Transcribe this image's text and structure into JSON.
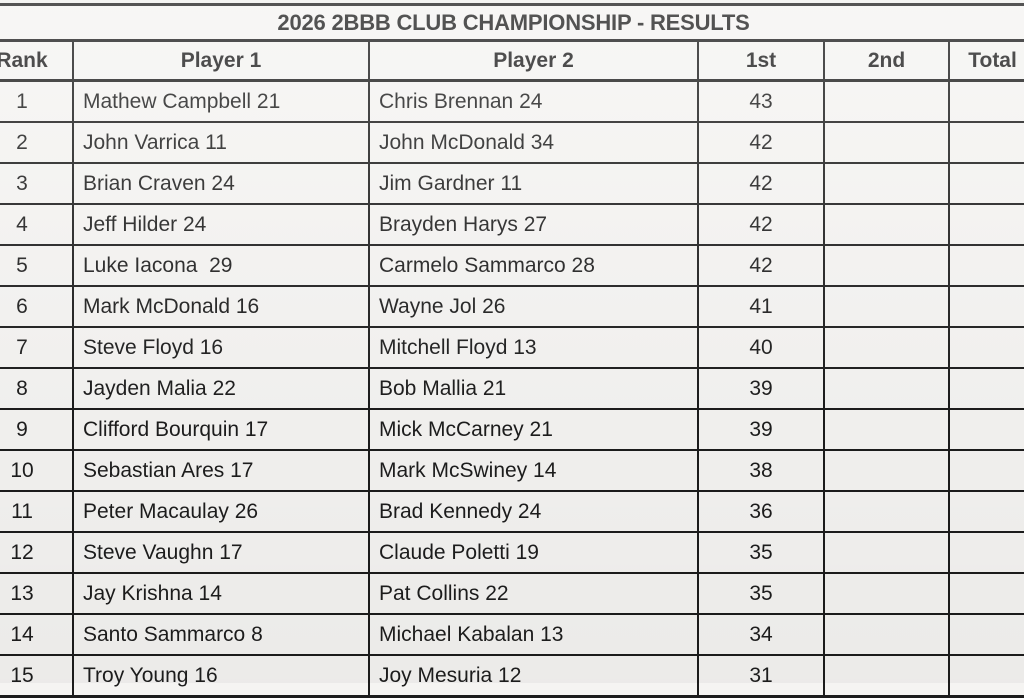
{
  "title": "2026 2BBB CLUB CHAMPIONSHIP - RESULTS",
  "table": {
    "columns": [
      "Rank",
      "Player 1",
      "Player 2",
      "1st",
      "2nd",
      "Total"
    ],
    "rows": [
      {
        "rank": "1",
        "player1": "Mathew Campbell 21",
        "player2": "Chris Brennan 24",
        "first": "43",
        "second": "",
        "total": ""
      },
      {
        "rank": "2",
        "player1": "John Varrica 11",
        "player2": "John McDonald 34",
        "first": "42",
        "second": "",
        "total": ""
      },
      {
        "rank": "3",
        "player1": "Brian Craven 24",
        "player2": "Jim Gardner 11",
        "first": "42",
        "second": "",
        "total": ""
      },
      {
        "rank": "4",
        "player1": "Jeff Hilder 24",
        "player2": "Brayden Harys 27",
        "first": "42",
        "second": "",
        "total": ""
      },
      {
        "rank": "5",
        "player1": "Luke Iacona  29",
        "player2": "Carmelo Sammarco 28",
        "first": "42",
        "second": "",
        "total": ""
      },
      {
        "rank": "6",
        "player1": "Mark McDonald 16",
        "player2": "Wayne Jol 26",
        "first": "41",
        "second": "",
        "total": ""
      },
      {
        "rank": "7",
        "player1": "Steve Floyd 16",
        "player2": "Mitchell Floyd 13",
        "first": "40",
        "second": "",
        "total": ""
      },
      {
        "rank": "8",
        "player1": "Jayden Malia 22",
        "player2": "Bob Mallia 21",
        "first": "39",
        "second": "",
        "total": ""
      },
      {
        "rank": "9",
        "player1": "Clifford Bourquin 17",
        "player2": "Mick McCarney 21",
        "first": "39",
        "second": "",
        "total": ""
      },
      {
        "rank": "10",
        "player1": "Sebastian Ares 17",
        "player2": "Mark McSwiney 14",
        "first": "38",
        "second": "",
        "total": ""
      },
      {
        "rank": "11",
        "player1": "Peter Macaulay 26",
        "player2": "Brad Kennedy 24",
        "first": "36",
        "second": "",
        "total": ""
      },
      {
        "rank": "12",
        "player1": "Steve Vaughn 17",
        "player2": "Claude Poletti 19",
        "first": "35",
        "second": "",
        "total": ""
      },
      {
        "rank": "13",
        "player1": "Jay Krishna 14",
        "player2": "Pat Collins 22",
        "first": "35",
        "second": "",
        "total": ""
      },
      {
        "rank": "14",
        "player1": "Santo Sammarco 8",
        "player2": "Michael Kabalan 13",
        "first": "34",
        "second": "",
        "total": ""
      },
      {
        "rank": "15",
        "player1": "Troy Young 16",
        "player2": "Joy Mesuria 12",
        "first": "31",
        "second": "",
        "total": ""
      }
    ]
  }
}
